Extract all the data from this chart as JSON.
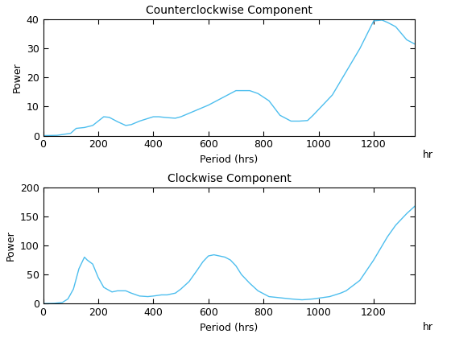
{
  "title1": "Counterclockwise Component",
  "title2": "Clockwise Component",
  "xlabel": "Period (hrs)",
  "ylabel": "Power",
  "hr_label": "hr",
  "line_color": "#4DBEEE",
  "ccw_x": [
    0,
    50,
    100,
    120,
    150,
    180,
    200,
    220,
    240,
    270,
    300,
    320,
    350,
    400,
    420,
    450,
    480,
    500,
    550,
    600,
    650,
    700,
    750,
    780,
    820,
    860,
    900,
    930,
    960,
    980,
    1000,
    1050,
    1100,
    1150,
    1200,
    1230,
    1250,
    1280,
    1320,
    1350
  ],
  "ccw_y": [
    0.0,
    0.1,
    0.8,
    2.5,
    2.8,
    3.5,
    5.0,
    6.5,
    6.3,
    4.8,
    3.5,
    3.8,
    5.0,
    6.5,
    6.5,
    6.2,
    6.0,
    6.5,
    8.5,
    10.5,
    13.0,
    15.5,
    15.5,
    14.5,
    12.0,
    7.0,
    5.0,
    5.0,
    5.2,
    7.0,
    9.0,
    14.0,
    22.0,
    30.0,
    39.5,
    39.8,
    39.0,
    37.5,
    33.0,
    31.5
  ],
  "cw_x": [
    0,
    40,
    70,
    90,
    110,
    130,
    150,
    160,
    180,
    200,
    220,
    250,
    270,
    300,
    320,
    350,
    380,
    400,
    430,
    450,
    480,
    500,
    530,
    560,
    580,
    600,
    620,
    640,
    660,
    680,
    700,
    720,
    750,
    780,
    820,
    860,
    900,
    940,
    980,
    1010,
    1040,
    1060,
    1080,
    1100,
    1150,
    1200,
    1250,
    1280,
    1320,
    1350
  ],
  "cw_y": [
    0.0,
    0.5,
    2.0,
    8.0,
    25.0,
    60.0,
    80.0,
    75.0,
    68.0,
    45.0,
    28.0,
    20.0,
    22.0,
    22.0,
    18.0,
    13.0,
    12.0,
    13.0,
    15.0,
    15.0,
    18.0,
    25.0,
    38.0,
    58.0,
    72.0,
    82.0,
    84.0,
    82.0,
    80.0,
    75.0,
    65.0,
    50.0,
    35.0,
    22.0,
    12.0,
    10.0,
    8.0,
    6.5,
    8.0,
    10.0,
    12.0,
    15.0,
    18.0,
    22.0,
    40.0,
    75.0,
    115.0,
    135.0,
    155.0,
    168.0
  ],
  "ccw_ylim": [
    0,
    40
  ],
  "cw_ylim": [
    0,
    200
  ],
  "xlim": [
    0,
    1350
  ],
  "xticks": [
    0,
    200,
    400,
    600,
    800,
    1000,
    1200
  ],
  "ccw_yticks": [
    0,
    10,
    20,
    30,
    40
  ],
  "cw_yticks": [
    0,
    50,
    100,
    150,
    200
  ],
  "bg_color": "#ffffff",
  "linewidth": 1.0,
  "figsize": [
    5.6,
    4.2
  ],
  "dpi": 100
}
